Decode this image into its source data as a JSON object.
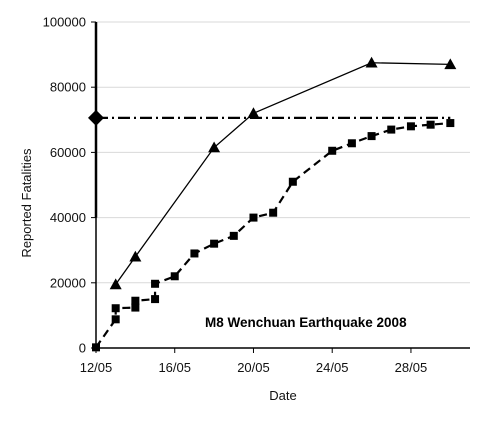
{
  "chart_data": {
    "type": "line",
    "title": "",
    "xlabel": "Date",
    "ylabel": "Reported  Fatalities",
    "annotation": "M8 Wenchuan Earthquake 2008",
    "x_unit": "date (May 2008)",
    "xlim": [
      "2008-05-12",
      "2008-05-31"
    ],
    "ylim": [
      0,
      100000
    ],
    "x_ticks": [
      {
        "date": "2008-05-12",
        "label": "12/05"
      },
      {
        "date": "2008-05-16",
        "label": "16/05"
      },
      {
        "date": "2008-05-20",
        "label": "20/05"
      },
      {
        "date": "2008-05-24",
        "label": "24/05"
      },
      {
        "date": "2008-05-28",
        "label": "28/05"
      }
    ],
    "y_ticks": [
      0,
      20000,
      40000,
      60000,
      80000,
      100000
    ],
    "y_tick_labels": [
      "0",
      "20000",
      "40000",
      "60000",
      "80000",
      "100000"
    ],
    "grid": "horizontal",
    "legend": "none",
    "series": [
      {
        "style": "solid line, triangle markers",
        "x": [
          "2008-05-13",
          "2008-05-14",
          "2008-05-18",
          "2008-05-20",
          "2008-05-26",
          "2008-05-30"
        ],
        "values": [
          19500,
          28000,
          61500,
          72000,
          87500,
          87000
        ]
      },
      {
        "style": "dashed line, square markers",
        "x": [
          "2008-05-12",
          "2008-05-13",
          "2008-05-13",
          "2008-05-14",
          "2008-05-14",
          "2008-05-15",
          "2008-05-15",
          "2008-05-16",
          "2008-05-17",
          "2008-05-18",
          "2008-05-19",
          "2008-05-20",
          "2008-05-21",
          "2008-05-22",
          "2008-05-24",
          "2008-05-25",
          "2008-05-26",
          "2008-05-27",
          "2008-05-28",
          "2008-05-29",
          "2008-05-30"
        ],
        "values": [
          200,
          8800,
          12200,
          12400,
          14500,
          15000,
          19700,
          22000,
          29000,
          32000,
          34400,
          40000,
          41500,
          51000,
          60500,
          62800,
          65000,
          67000,
          68000,
          68500,
          69000
        ]
      },
      {
        "style": "dash-dot horizontal reference line",
        "x": [
          "2008-05-12",
          "2008-05-30"
        ],
        "values": [
          70600,
          70600
        ]
      },
      {
        "style": "diamond marker with vertical range bar",
        "x": [
          "2008-05-12"
        ],
        "values": [
          70600
        ],
        "range": [
          40000,
          100000
        ]
      }
    ]
  }
}
